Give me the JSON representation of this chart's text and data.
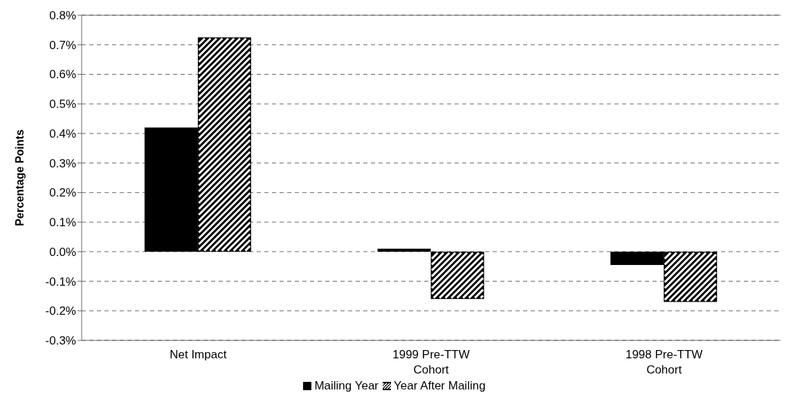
{
  "chart_data": {
    "type": "bar",
    "ylabel": "Percentage Points",
    "categories": [
      "Net Impact",
      "1999 Pre-TTW Cohort",
      "1998 Pre-TTW Cohort"
    ],
    "series": [
      {
        "name": "Mailing Year",
        "color": "#000000",
        "values": [
          0.42,
          0.01,
          -0.045
        ]
      },
      {
        "name": "Year After Mailing",
        "color": "#000000",
        "values": [
          0.725,
          -0.16,
          -0.17
        ]
      }
    ],
    "ylim": [
      -0.3,
      0.8
    ],
    "yticks": [
      {
        "value": -0.3,
        "label": "-0.3%"
      },
      {
        "value": -0.2,
        "label": "-0.2%"
      },
      {
        "value": -0.1,
        "label": "-0.1%"
      },
      {
        "value": 0,
        "label": "0.0%"
      },
      {
        "value": 0.1,
        "label": "0.1%"
      },
      {
        "value": 0.2,
        "label": "0.2%"
      },
      {
        "value": 0.3,
        "label": "0.3%"
      },
      {
        "value": 0.4,
        "label": "0.4%"
      },
      {
        "value": 0.5,
        "label": "0.5%"
      },
      {
        "value": 0.6,
        "label": "0.6%"
      },
      {
        "value": 0.7,
        "label": "0.7%"
      },
      {
        "value": 0.8,
        "label": "0.8%"
      }
    ],
    "grid": "y",
    "legend": "bottom"
  }
}
